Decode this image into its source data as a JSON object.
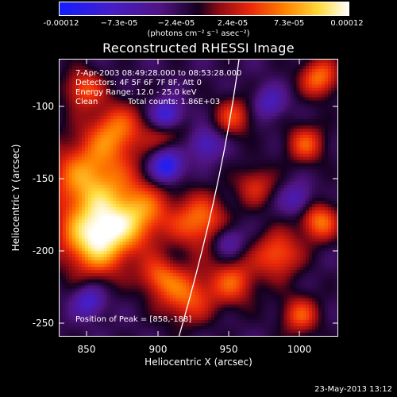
{
  "colorbar": {
    "ticks": [
      "-0.00012",
      "−7.3e-05",
      "−2.4e-05",
      "2.4e-05",
      "7.3e-05",
      "0.00012"
    ],
    "units": "(photons cm⁻² s⁻¹ asec⁻²)",
    "min": -0.00012,
    "max": 0.00012
  },
  "image": {
    "title": "Reconstructed RHESSI Image",
    "time_range": "7-Apr-2003 08:49:28.000 to 08:53:28.000",
    "detectors": "Detectors: 4F 5F 6F 7F 8F, Att 0",
    "energy": "Energy Range: 12.0 - 25.0 keV",
    "clean": "Clean",
    "total_counts": "Total counts: 1.86E+03",
    "peak": "Position of Peak = [858,-188]"
  },
  "axes": {
    "xlabel": "Heliocentric X (arcsec)",
    "ylabel": "Heliocentric Y (arcsec)",
    "xticks": [
      "850",
      "900",
      "950",
      "1000"
    ],
    "yticks": [
      "-100",
      "-150",
      "-200",
      "-250"
    ],
    "xrange": [
      832,
      1030
    ],
    "yrange": [
      -265,
      -70
    ]
  },
  "timestamp": "23-May-2013 13:12",
  "chart_data": {
    "type": "heatmap",
    "title": "Reconstructed RHESSI Image",
    "xlabel": "Heliocentric X (arcsec)",
    "ylabel": "Heliocentric Y (arcsec)",
    "xlim": [
      832,
      1030
    ],
    "ylim": [
      -265,
      -70
    ],
    "color_range": [
      -0.00012,
      0.00012
    ],
    "peak": [
      858,
      -188
    ],
    "limb": true
  }
}
